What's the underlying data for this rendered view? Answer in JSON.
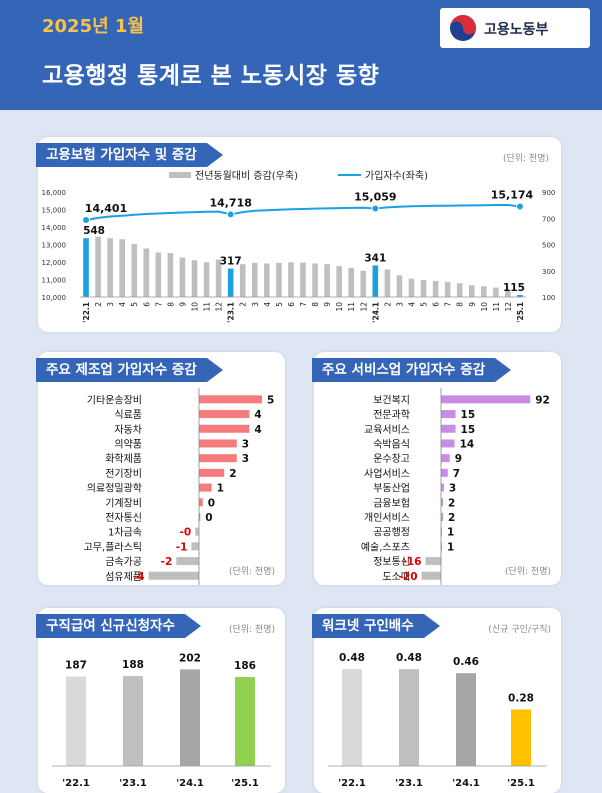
{
  "header": {
    "year_label": "2025년 1월",
    "title": "고용행정 통계로 본 노동시장 동향",
    "logo_label": "고용노동부"
  },
  "colors": {
    "header": "#3565b7",
    "accent_yellow": "#f6c34a",
    "bar_gray": "#bfbfbf",
    "line_blue": "#1ba1e2",
    "mfg_red": "#f47c7c",
    "svc_purple": "#c98ce6",
    "green": "#92d050",
    "orange": "#ffc000"
  },
  "panels": {
    "insurance": {
      "title": "고용보험 가입자수 및 증감",
      "unit": "(단위: 천명)"
    },
    "manufacturing": {
      "title": "주요 제조업 가입자수 증감",
      "unit": "(단위: 천명)"
    },
    "service": {
      "title": "주요 서비스업 가입자수 증감",
      "unit": "(단위: 천명)"
    },
    "claims": {
      "title": "구직급여 신규신청자수",
      "unit": "(단위: 천명)"
    },
    "worknet": {
      "title": "워크넷 구인배수",
      "unit": "(신규 구인/구직)"
    }
  },
  "chart_data": [
    {
      "type": "bar+line",
      "title": "고용보험 가입자수 및 증감",
      "legend": [
        "전년동월대비 증감(우축)",
        "가입자수(좌축)"
      ],
      "legend_position": "top",
      "x": [
        "'22.1",
        "2",
        "3",
        "4",
        "5",
        "6",
        "7",
        "8",
        "9",
        "10",
        "11",
        "12",
        "'23.1",
        "2",
        "3",
        "4",
        "5",
        "6",
        "7",
        "8",
        "9",
        "10",
        "11",
        "12",
        "'24.1",
        "2",
        "3",
        "4",
        "5",
        "6",
        "7",
        "8",
        "9",
        "10",
        "11",
        "12",
        "'25.1"
      ],
      "series": [
        {
          "name": "전년동월대비 증감(우축)",
          "axis": "right",
          "values": [
            548,
            560,
            548,
            540,
            505,
            470,
            440,
            435,
            400,
            380,
            365,
            385,
            317,
            350,
            360,
            355,
            360,
            365,
            362,
            355,
            350,
            335,
            322,
            300,
            341,
            310,
            265,
            240,
            230,
            222,
            215,
            205,
            190,
            182,
            172,
            155,
            115
          ],
          "highlight_indices": [
            0,
            12,
            24,
            36
          ]
        },
        {
          "name": "가입자수(좌축)",
          "axis": "left",
          "values": [
            14401,
            14520,
            14600,
            14640,
            14700,
            14740,
            14770,
            14800,
            14830,
            14850,
            14870,
            14880,
            14718,
            14850,
            14930,
            14960,
            14990,
            15010,
            15030,
            15050,
            15060,
            15080,
            15090,
            15095,
            15059,
            15120,
            15160,
            15185,
            15200,
            15210,
            15220,
            15230,
            15235,
            15245,
            15255,
            15260,
            15174
          ]
        }
      ],
      "ylim_left": [
        10000,
        16000
      ],
      "yticks_left": [
        "10,000",
        "11,000",
        "12,000",
        "13,000",
        "14,000",
        "15,000",
        "16,000"
      ],
      "ylim_right": [
        100,
        900
      ],
      "yticks_right": [
        "100",
        "300",
        "500",
        "700",
        "900"
      ],
      "labels_line": [
        {
          "index": 0,
          "text": "14,401"
        },
        {
          "index": 12,
          "text": "14,718"
        },
        {
          "index": 24,
          "text": "15,059"
        },
        {
          "index": 36,
          "text": "15,174"
        }
      ],
      "labels_bar": [
        {
          "index": 0,
          "text": "548"
        },
        {
          "index": 12,
          "text": "317"
        },
        {
          "index": 24,
          "text": "341"
        },
        {
          "index": 36,
          "text": "115"
        }
      ]
    },
    {
      "type": "bar",
      "orientation": "horizontal",
      "title": "주요 제조업 가입자수 증감",
      "categories": [
        "기타운송장비",
        "식료품",
        "자동차",
        "의약품",
        "화학제품",
        "전기장비",
        "의료정밀광학",
        "기계장비",
        "전자통신",
        "1차금속",
        "고무,플라스틱",
        "금속가공",
        "섬유제품"
      ],
      "values": [
        5,
        4,
        4,
        3,
        3,
        2,
        1,
        0.3,
        0.1,
        -0.3,
        -0.6,
        -1.8,
        -4
      ],
      "value_labels": [
        "5",
        "4",
        "4",
        "3",
        "3",
        "2",
        "1",
        "0",
        "0",
        "-0",
        "-1",
        "-2",
        "-4"
      ]
    },
    {
      "type": "bar",
      "orientation": "horizontal",
      "title": "주요 서비스업 가입자수 증감",
      "categories": [
        "보건복지",
        "전문과학",
        "교육서비스",
        "숙박음식",
        "운수창고",
        "사업서비스",
        "부동산업",
        "금융보험",
        "개인서비스",
        "공공행정",
        "예술,스포츠",
        "정보통신",
        "도소매"
      ],
      "values": [
        92,
        15,
        15,
        14,
        9,
        7,
        3,
        2,
        2,
        1,
        1,
        -16,
        -20
      ],
      "value_labels": [
        "92",
        "15",
        "15",
        "14",
        "9",
        "7",
        "3",
        "2",
        "2",
        "1",
        "1",
        "-16",
        "-20"
      ]
    },
    {
      "type": "bar",
      "title": "구직급여 신규신청자수",
      "categories": [
        "'22.1",
        "'23.1",
        "'24.1",
        "'25.1"
      ],
      "values": [
        187,
        188,
        202,
        186
      ],
      "value_labels": [
        "187",
        "188",
        "202",
        "186"
      ]
    },
    {
      "type": "bar",
      "title": "워크넷 구인배수",
      "categories": [
        "'22.1",
        "'23.1",
        "'24.1",
        "'25.1"
      ],
      "values": [
        0.48,
        0.48,
        0.46,
        0.28
      ],
      "value_labels": [
        "0.48",
        "0.48",
        "0.46",
        "0.28"
      ]
    }
  ]
}
